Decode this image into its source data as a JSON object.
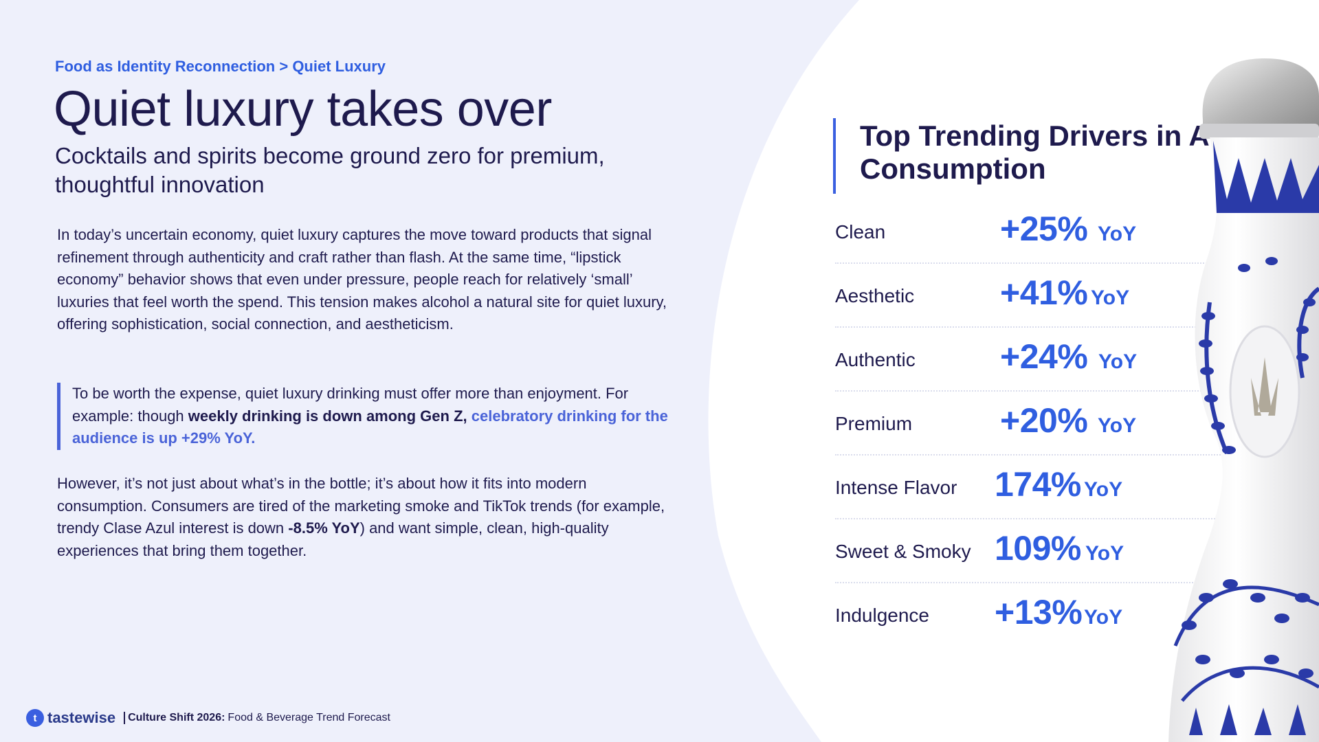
{
  "breadcrumb": "Food as Identity Reconnection > Quiet Luxury",
  "title": "Quiet luxury takes over",
  "subtitle": "Cocktails and spirits become ground zero for premium, thoughtful innovation",
  "paragraph1": "In today’s uncertain economy, quiet luxury captures the move toward products that signal refinement through authenticity and craft rather than flash. At the same time, “lipstick economy” behavior shows that even under pressure, people reach for relatively ‘small’ luxuries that feel worth the spend. This tension makes alcohol a natural site for quiet luxury, offering sophistication, social connection, and aestheticism.",
  "quote": {
    "plain": "To be worth the expense, quiet luxury drinking must offer more than enjoyment. For example: though ",
    "strong": "weekly drinking is down among Gen Z,",
    "accent": "celebratory drinking for the audience is up +29% YoY."
  },
  "paragraph2": {
    "before": "However, it’s not just about what’s in the bottle; it’s about how it fits into modern consumption. Consumers are tired of the marketing smoke and TikTok trends (for example, trendy Clase Azul interest is down ",
    "strong": "-8.5% YoY",
    "after": ") and want simple, clean, high-quality experiences that bring them together."
  },
  "panel": {
    "title": "Top Trending Drivers in Alcohol Consumption",
    "drivers": [
      {
        "label": "Clean",
        "value": "+25%",
        "unit": "YoY"
      },
      {
        "label": "Aesthetic",
        "value": "+41%",
        "unit": "YoY"
      },
      {
        "label": "Authentic",
        "value": "+24%",
        "unit": "YoY"
      },
      {
        "label": "Premium",
        "value": "+20%",
        "unit": "YoY"
      },
      {
        "label": "Intense Flavor",
        "value": "174%",
        "unit": "YoY"
      },
      {
        "label": "Sweet & Smoky",
        "value": "109%",
        "unit": "YoY"
      },
      {
        "label": "Indulgence",
        "value": "+13%",
        "unit": "YoY"
      }
    ]
  },
  "footer": {
    "logo_text": "tastewise",
    "report_bold": "Culture Shift 2026:",
    "report_rest": "Food & Beverage Trend Forecast"
  },
  "colors": {
    "accent": "#2f5ee0",
    "ink": "#1e1a4d",
    "background": "#eef0fb"
  },
  "icons": {
    "logo": "tastewise-logo-icon",
    "bottle": "tequila-bottle-image"
  }
}
